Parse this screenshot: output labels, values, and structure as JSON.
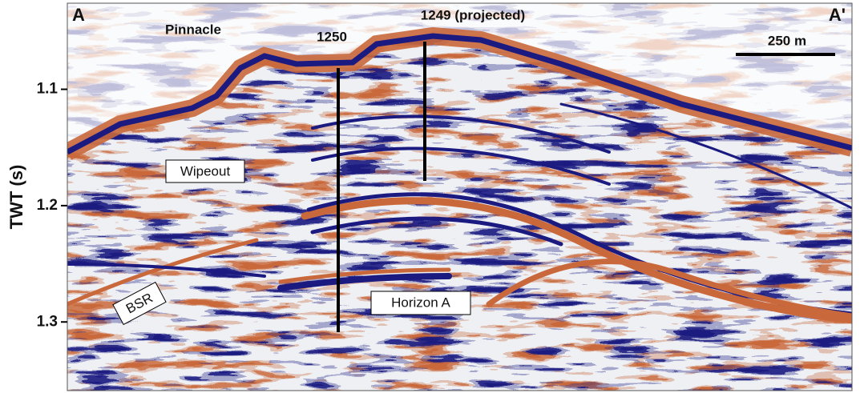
{
  "axis": {
    "label": "TWT (s)",
    "ylim": [
      1.026,
      1.359
    ],
    "yticks": [
      1.1,
      1.2,
      1.3
    ]
  },
  "annotations": {
    "left_end": "A",
    "right_end": "A'",
    "pinnacle": "Pinnacle",
    "well_1250": "1250",
    "well_1249": "1249 (projected)",
    "scale_bar": "250 m",
    "wipeout": "Wipeout",
    "bsr": "BSR",
    "horizon": "Horizon A"
  }
}
